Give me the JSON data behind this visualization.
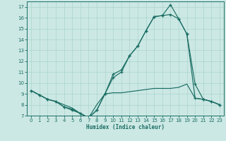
{
  "xlabel": "Humidex (Indice chaleur)",
  "bg_color": "#cce8e4",
  "line_color": "#1a6e64",
  "grid_color": "#aad4ce",
  "xlim": [
    -0.5,
    23.5
  ],
  "ylim": [
    7,
    17.5
  ],
  "xticks": [
    0,
    1,
    2,
    3,
    4,
    5,
    6,
    7,
    8,
    9,
    10,
    11,
    12,
    13,
    14,
    15,
    16,
    17,
    18,
    19,
    20,
    21,
    22,
    23
  ],
  "yticks": [
    7,
    8,
    9,
    10,
    11,
    12,
    13,
    14,
    15,
    16,
    17
  ],
  "line1_x": [
    0,
    1,
    2,
    3,
    4,
    5,
    6,
    7,
    8,
    9,
    10,
    11,
    12,
    13,
    14,
    15,
    16,
    17,
    18,
    19,
    20,
    21,
    22,
    23
  ],
  "line1_y": [
    9.3,
    8.9,
    8.5,
    8.3,
    8.0,
    7.7,
    7.2,
    6.8,
    8.0,
    9.0,
    9.1,
    9.1,
    9.2,
    9.3,
    9.4,
    9.5,
    9.5,
    9.5,
    9.6,
    9.9,
    8.6,
    8.5,
    8.3,
    8.0
  ],
  "line2_x": [
    0,
    1,
    2,
    3,
    4,
    5,
    6,
    7,
    8,
    9,
    10,
    11,
    12,
    13,
    14,
    15,
    16,
    17,
    18,
    19,
    20,
    21,
    22,
    23
  ],
  "line2_y": [
    9.3,
    8.9,
    8.5,
    8.3,
    7.8,
    7.5,
    7.2,
    6.8,
    7.5,
    9.0,
    10.8,
    11.2,
    12.5,
    13.4,
    14.8,
    16.1,
    16.2,
    16.3,
    15.9,
    14.5,
    8.6,
    8.5,
    8.3,
    8.0
  ],
  "line3_x": [
    0,
    1,
    2,
    3,
    4,
    5,
    6,
    7,
    8,
    9,
    10,
    11,
    12,
    13,
    14,
    15,
    16,
    17,
    18,
    19,
    20,
    21,
    22,
    23
  ],
  "line3_y": [
    9.3,
    8.9,
    8.5,
    8.3,
    7.8,
    7.6,
    7.2,
    6.8,
    7.5,
    9.0,
    10.5,
    11.0,
    12.5,
    13.4,
    14.8,
    16.1,
    16.2,
    17.2,
    15.9,
    14.5,
    9.9,
    8.5,
    8.3,
    8.0
  ]
}
